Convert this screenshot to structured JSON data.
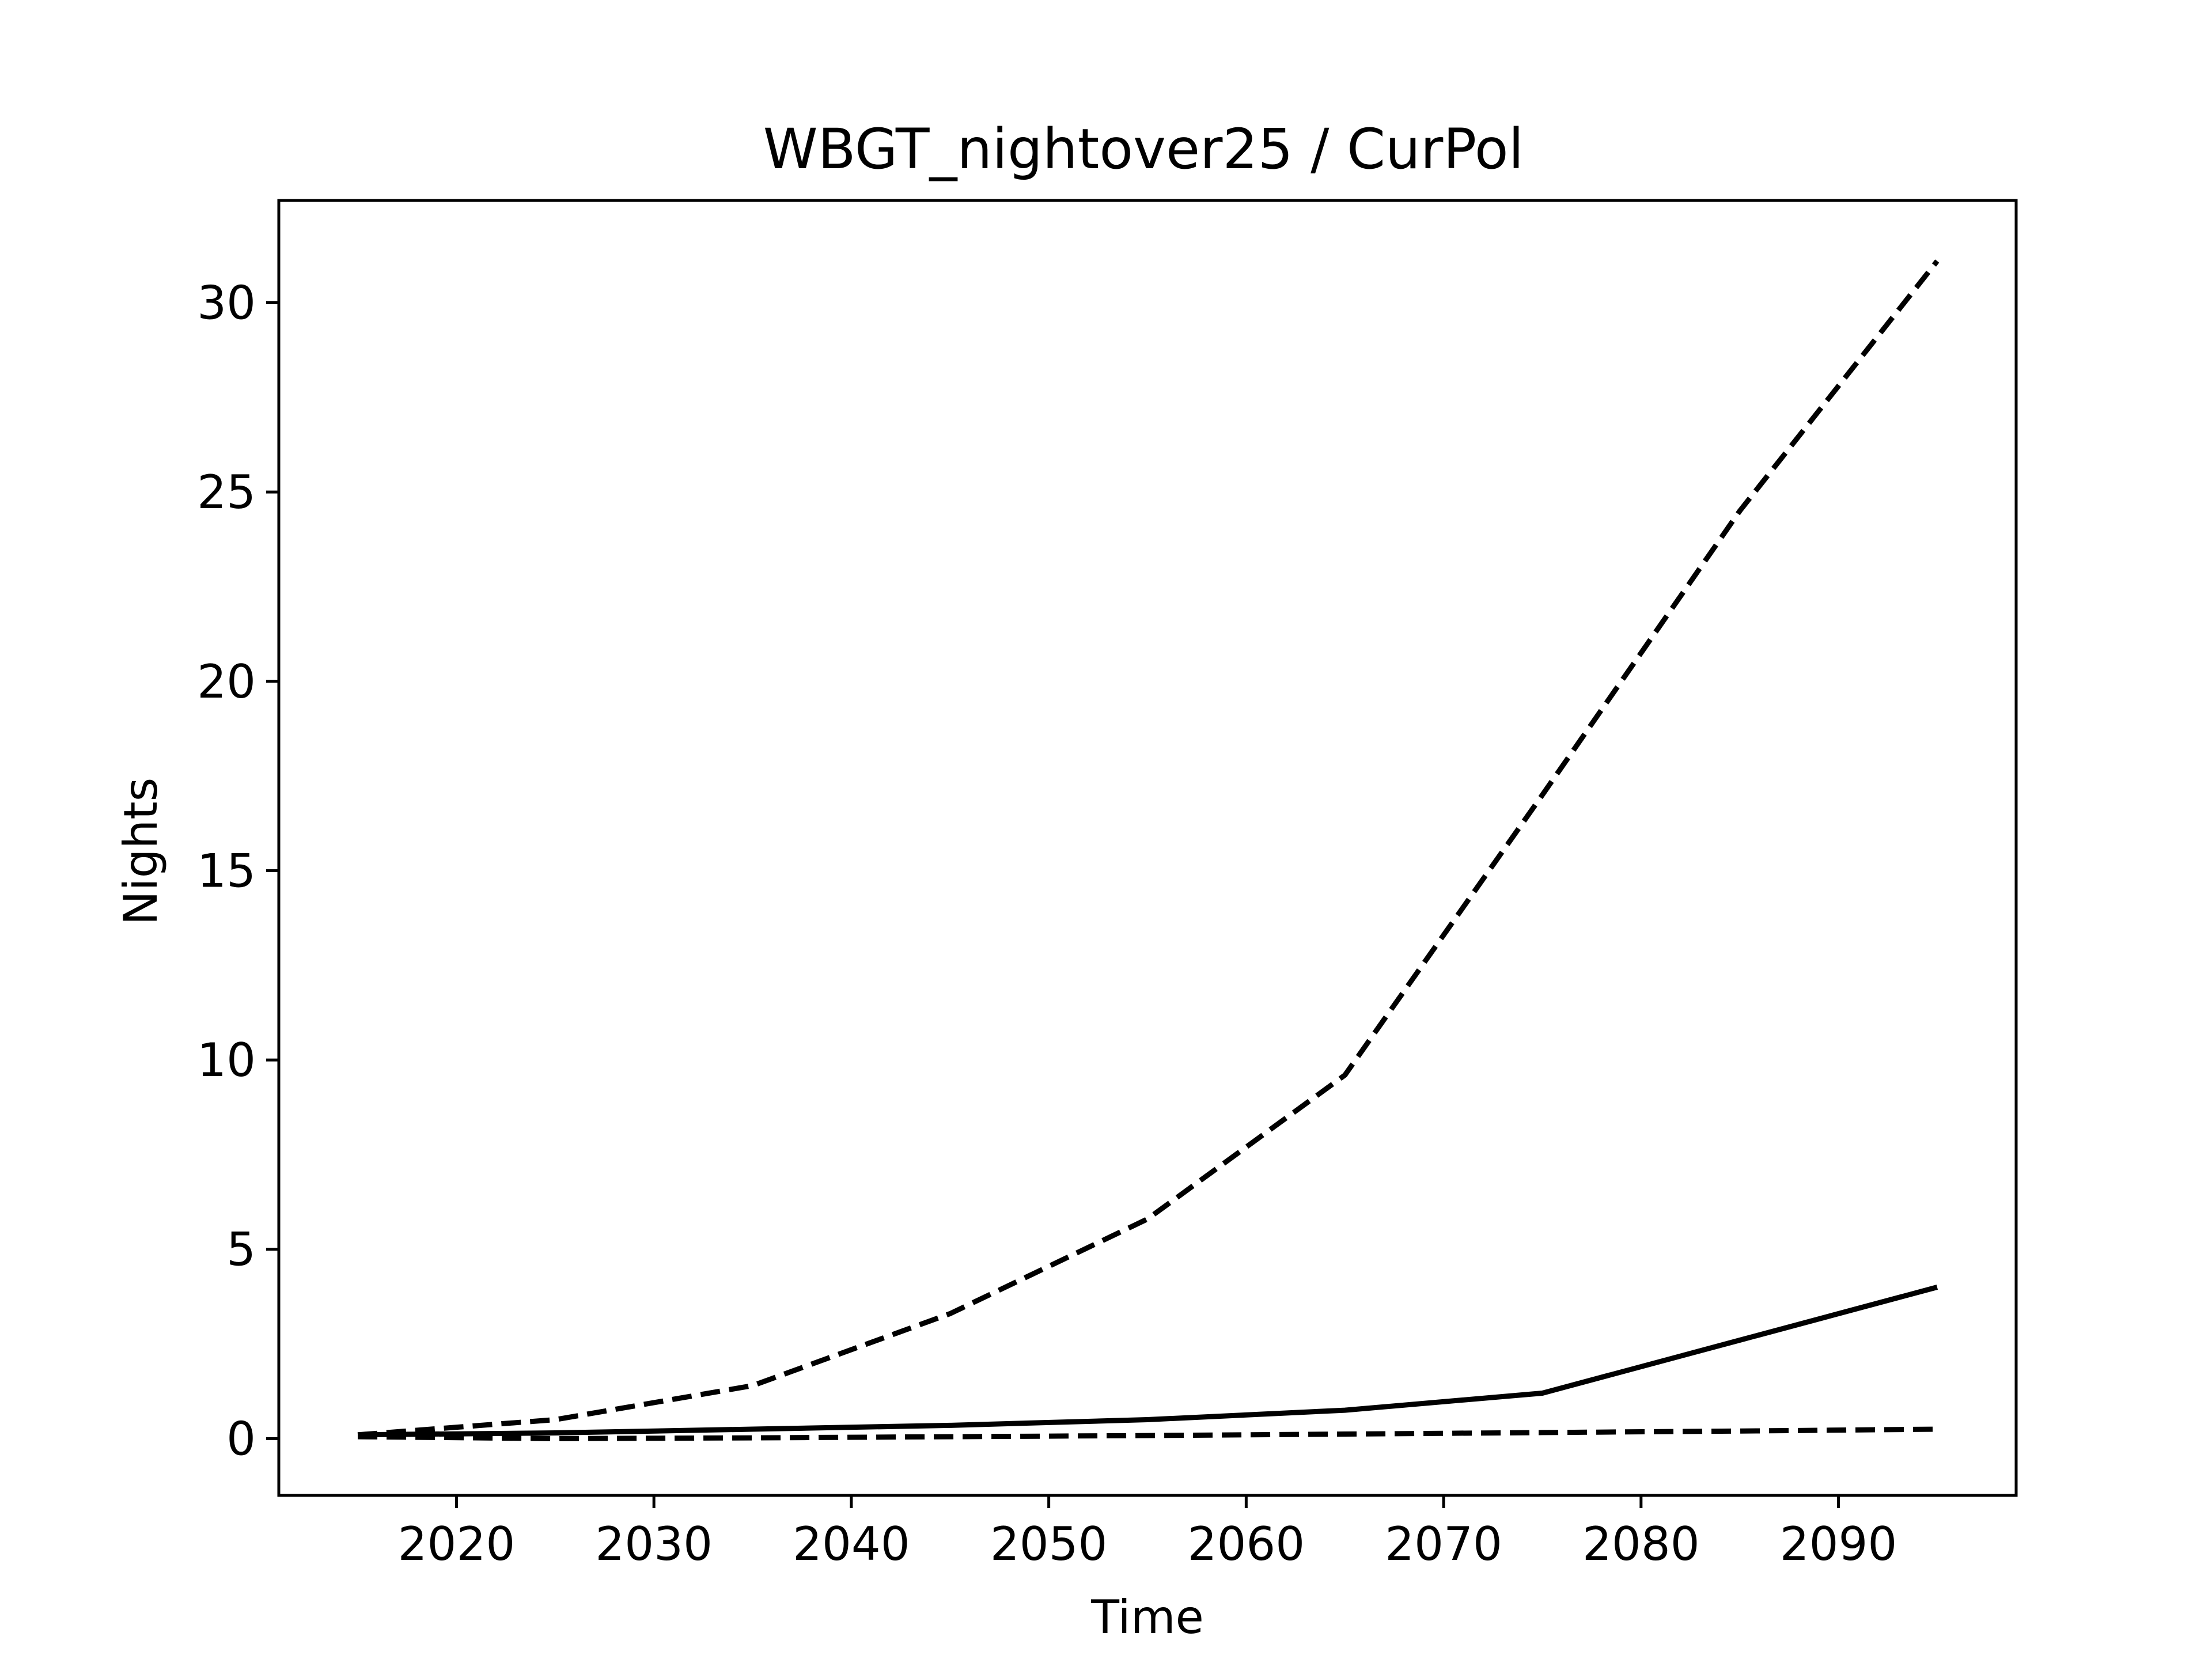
{
  "chart_data": {
    "type": "line",
    "title": "WBGT_nightover25 / CurPol",
    "xlabel": "Time",
    "ylabel": "Nights",
    "xlim": [
      2011,
      2099
    ],
    "ylim": [
      -1.5,
      32.7
    ],
    "xticks": [
      2020,
      2030,
      2040,
      2050,
      2060,
      2070,
      2080,
      2090
    ],
    "yticks": [
      0,
      5,
      10,
      15,
      20,
      25,
      30
    ],
    "grid": false,
    "colors": {
      "line": "#000000",
      "background": "#ffffff"
    },
    "x": [
      2015,
      2025,
      2035,
      2045,
      2055,
      2065,
      2075,
      2085,
      2095
    ],
    "series": [
      {
        "style": "dashed",
        "values": [
          0.1,
          0.5,
          1.4,
          3.3,
          5.8,
          9.6,
          17.0,
          24.5,
          31.1
        ]
      },
      {
        "style": "solid",
        "values": [
          0.1,
          0.15,
          0.25,
          0.35,
          0.5,
          0.75,
          1.2,
          2.6,
          4.0
        ]
      },
      {
        "style": "dashed",
        "values": [
          0.05,
          0.0,
          0.02,
          0.05,
          0.08,
          0.12,
          0.16,
          0.2,
          0.25
        ]
      }
    ]
  }
}
